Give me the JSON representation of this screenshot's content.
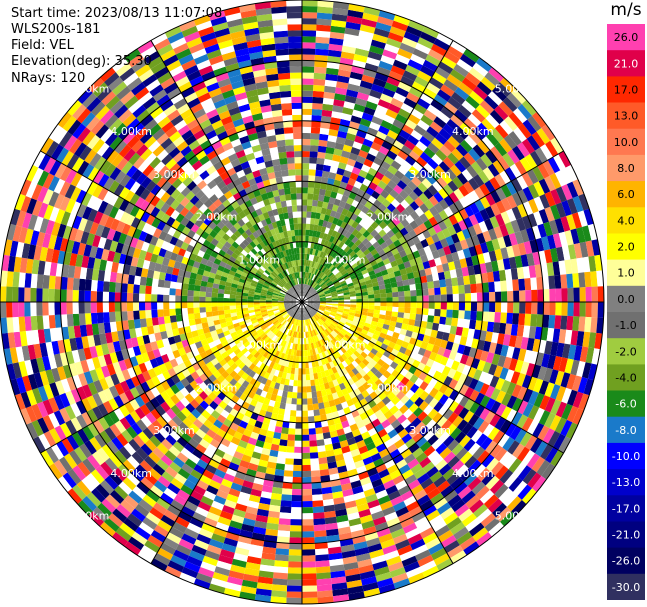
{
  "header": {
    "start_time": "Start time: 2023/08/13 11:07:08",
    "instrument": "WLS200s-181",
    "field": "Field: VEL",
    "elevation": "Elevation(deg): 35.30",
    "nrays": "NRays: 120"
  },
  "chart_data": {
    "type": "ppi-polar-heatmap",
    "field": "VEL",
    "nrays": 120,
    "elevation_deg": 35.3,
    "units": "m/s",
    "range_rings_km": [
      1.0,
      2.0,
      3.0,
      4.0,
      5.0
    ],
    "ring_labels": [
      "1.00km",
      "2.00km",
      "3.00km",
      "4.00km",
      "5.00km"
    ],
    "spoke_angles_deg": [
      0,
      30,
      60,
      90,
      120,
      150,
      180,
      210,
      240,
      270,
      300,
      330
    ],
    "max_range_km": 5.0,
    "colorbar": {
      "title": "m/s",
      "ticks": [
        "26.0",
        "21.0",
        "17.0",
        "13.0",
        "10.0",
        "8.0",
        "6.0",
        "4.0",
        "2.0",
        "1.0",
        "0.0",
        "-1.0",
        "-2.0",
        "-4.0",
        "-6.0",
        "-8.0",
        "-10.0",
        "-13.0",
        "-17.0",
        "-21.0",
        "-26.0",
        "-30.0"
      ],
      "colors": [
        "#ff40b0",
        "#e0004a",
        "#ff2800",
        "#ff5a28",
        "#ff7850",
        "#ff9a6a",
        "#ffb400",
        "#ffe000",
        "#ffff00",
        "#ffff99",
        "#808080",
        "#707070",
        "#a0cc40",
        "#70a020",
        "#1a8a1a",
        "#1a7aca",
        "#0000ff",
        "#0000cc",
        "#0000a0",
        "#000080",
        "#000060",
        "#303060"
      ]
    }
  }
}
